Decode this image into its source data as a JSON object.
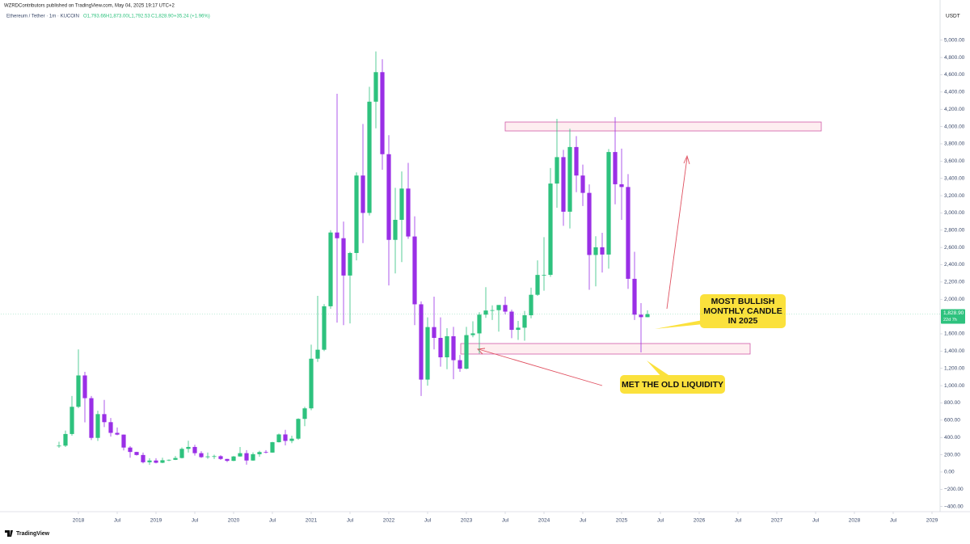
{
  "header": {
    "publisher": "WZRDContributors published on TradingView.com, May 04, 2025 19:17 UTC+2",
    "symbol": "Ethereum / Tether · 1m · KUCOIN",
    "ohlc": [
      "O1,793.66",
      "H1,873.00",
      "L1,792.53",
      "C1,828.90",
      "+35.24 (+1.96%)"
    ],
    "logo": "TradingView"
  },
  "chart_data": {
    "type": "candlestick",
    "currency": "USDT",
    "up_color": "#2ec27e",
    "down_color": "#9a2fe6",
    "x": [
      "2017-10",
      "2017-11",
      "2017-12",
      "2018-01",
      "2018-02",
      "2018-03",
      "2018-04",
      "2018-05",
      "2018-06",
      "2018-07",
      "2018-08",
      "2018-09",
      "2018-10",
      "2018-11",
      "2018-12",
      "2019-01",
      "2019-02",
      "2019-03",
      "2019-04",
      "2019-05",
      "2019-06",
      "2019-07",
      "2019-08",
      "2019-09",
      "2019-10",
      "2019-11",
      "2019-12",
      "2020-01",
      "2020-02",
      "2020-03",
      "2020-04",
      "2020-05",
      "2020-06",
      "2020-07",
      "2020-08",
      "2020-09",
      "2020-10",
      "2020-11",
      "2020-12",
      "2021-01",
      "2021-02",
      "2021-03",
      "2021-04",
      "2021-05",
      "2021-06",
      "2021-07",
      "2021-08",
      "2021-09",
      "2021-10",
      "2021-11",
      "2021-12",
      "2022-01",
      "2022-02",
      "2022-03",
      "2022-04",
      "2022-05",
      "2022-06",
      "2022-07",
      "2022-08",
      "2022-09",
      "2022-10",
      "2022-11",
      "2022-12",
      "2023-01",
      "2023-02",
      "2023-03",
      "2023-04",
      "2023-05",
      "2023-06",
      "2023-07",
      "2023-08",
      "2023-09",
      "2023-10",
      "2023-11",
      "2023-12",
      "2024-01",
      "2024-02",
      "2024-03",
      "2024-04",
      "2024-05",
      "2024-06",
      "2024-07",
      "2024-08",
      "2024-09",
      "2024-10",
      "2024-11",
      "2024-12",
      "2025-01",
      "2025-02",
      "2025-03",
      "2025-04",
      "2025-05"
    ],
    "open": [
      300,
      305,
      440,
      755,
      1118,
      855,
      395,
      670,
      577,
      453,
      433,
      283,
      232,
      197,
      113,
      133,
      107,
      136,
      141,
      162,
      268,
      290,
      218,
      172,
      180,
      183,
      151,
      129,
      180,
      218,
      133,
      206,
      231,
      225,
      345,
      435,
      360,
      386,
      615,
      737,
      1312,
      1416,
      1919,
      2773,
      2707,
      2275,
      2536,
      3433,
      3000,
      4288,
      4630,
      3680,
      2688,
      2920,
      3282,
      2727,
      1942,
      1070,
      1678,
      1553,
      1328,
      1572,
      1295,
      1196,
      1585,
      1605,
      1822,
      1870,
      1874,
      1934,
      1857,
      1646,
      1671,
      1815,
      2052,
      2282,
      2283,
      3340,
      3646,
      3014,
      3763,
      3433,
      3232,
      2513,
      2602,
      2518,
      3705,
      3332,
      3300,
      2237,
      1822,
      1793
    ],
    "high": [
      350,
      480,
      880,
      1420,
      1160,
      880,
      710,
      835,
      625,
      515,
      435,
      300,
      235,
      225,
      160,
      160,
      165,
      146,
      185,
      285,
      362,
      315,
      240,
      225,
      200,
      195,
      153,
      185,
      290,
      253,
      228,
      246,
      253,
      349,
      445,
      488,
      420,
      622,
      755,
      1475,
      2040,
      1945,
      2800,
      4380,
      2900,
      2550,
      3470,
      4030,
      4460,
      4870,
      4780,
      3900,
      3290,
      3480,
      3580,
      2960,
      1975,
      1790,
      2030,
      1790,
      1665,
      1680,
      1355,
      1680,
      1745,
      1850,
      2140,
      1930,
      1930,
      2030,
      1880,
      1750,
      1865,
      2135,
      2450,
      2720,
      3520,
      4090,
      3730,
      3975,
      3890,
      3560,
      3330,
      2730,
      2770,
      3740,
      4110,
      3745,
      3450,
      2550,
      1955,
      1873
    ],
    "low": [
      280,
      290,
      420,
      740,
      575,
      370,
      360,
      520,
      410,
      425,
      250,
      165,
      190,
      100,
      82,
      100,
      102,
      126,
      139,
      157,
      225,
      190,
      163,
      153,
      150,
      140,
      115,
      126,
      177,
      85,
      130,
      177,
      216,
      223,
      342,
      308,
      334,
      372,
      530,
      715,
      1275,
      1400,
      1890,
      1730,
      1700,
      1720,
      2450,
      2650,
      2970,
      3980,
      3500,
      2160,
      2300,
      2430,
      2700,
      1700,
      880,
      1000,
      1420,
      1220,
      1190,
      1075,
      1160,
      1190,
      1560,
      1370,
      1785,
      1760,
      1625,
      1825,
      1550,
      1530,
      1520,
      1780,
      2040,
      2100,
      2260,
      3060,
      2850,
      2820,
      3240,
      3080,
      2110,
      2150,
      2310,
      2355,
      3100,
      2920,
      2120,
      1760,
      1385,
      1792
    ],
    "close": [
      305,
      440,
      755,
      1118,
      855,
      395,
      670,
      577,
      453,
      433,
      283,
      232,
      197,
      113,
      133,
      107,
      136,
      141,
      162,
      268,
      290,
      218,
      172,
      180,
      183,
      151,
      129,
      180,
      218,
      133,
      206,
      231,
      225,
      345,
      435,
      360,
      386,
      615,
      737,
      1312,
      1416,
      1919,
      2773,
      2707,
      2275,
      2536,
      3433,
      3000,
      4288,
      4630,
      3680,
      2688,
      2920,
      3282,
      2727,
      1942,
      1070,
      1678,
      1553,
      1328,
      1572,
      1295,
      1196,
      1585,
      1605,
      1822,
      1870,
      1874,
      1934,
      1857,
      1646,
      1671,
      1815,
      2052,
      2282,
      2283,
      3340,
      3646,
      3014,
      3763,
      3433,
      3232,
      2513,
      2602,
      2518,
      3705,
      3332,
      3300,
      2237,
      1822,
      1793,
      1828
    ],
    "last_price": {
      "value": 1828.9,
      "label": "1,828.90"
    },
    "countdown": "22d 7h",
    "xlim": [
      "2017-01",
      "2029-02"
    ],
    "xticks": [
      {
        "value": "2018-01",
        "label": "2018"
      },
      {
        "value": "2018-07",
        "label": "Jul"
      },
      {
        "value": "2019-01",
        "label": "2019"
      },
      {
        "value": "2019-07",
        "label": "Jul"
      },
      {
        "value": "2020-01",
        "label": "2020"
      },
      {
        "value": "2020-07",
        "label": "Jul"
      },
      {
        "value": "2021-01",
        "label": "2021"
      },
      {
        "value": "2021-07",
        "label": "Jul"
      },
      {
        "value": "2022-01",
        "label": "2022"
      },
      {
        "value": "2022-07",
        "label": "Jul"
      },
      {
        "value": "2023-01",
        "label": "2023"
      },
      {
        "value": "2023-07",
        "label": "Jul"
      },
      {
        "value": "2024-01",
        "label": "2024"
      },
      {
        "value": "2024-07",
        "label": "Jul"
      },
      {
        "value": "2025-01",
        "label": "2025"
      },
      {
        "value": "2025-07",
        "label": "Jul"
      },
      {
        "value": "2026-01",
        "label": "2026"
      },
      {
        "value": "2026-07",
        "label": "Jul"
      },
      {
        "value": "2027-01",
        "label": "2027"
      },
      {
        "value": "2027-07",
        "label": "Jul"
      },
      {
        "value": "2028-01",
        "label": "2028"
      },
      {
        "value": "2028-07",
        "label": "Jul"
      },
      {
        "value": "2029-01",
        "label": "2029"
      }
    ],
    "ylim": [
      -450,
      5400
    ],
    "yticks": [
      {
        "value": 5000,
        "label": "5,000.00"
      },
      {
        "value": 4800,
        "label": "4,800.00"
      },
      {
        "value": 4600,
        "label": "4,600.00"
      },
      {
        "value": 4400,
        "label": "4,400.00"
      },
      {
        "value": 4200,
        "label": "4,200.00"
      },
      {
        "value": 4000,
        "label": "4,000.00"
      },
      {
        "value": 3800,
        "label": "3,800.00"
      },
      {
        "value": 3600,
        "label": "3,600.00"
      },
      {
        "value": 3400,
        "label": "3,400.00"
      },
      {
        "value": 3200,
        "label": "3,200.00"
      },
      {
        "value": 3000,
        "label": "3,000.00"
      },
      {
        "value": 2800,
        "label": "2,800.00"
      },
      {
        "value": 2600,
        "label": "2,600.00"
      },
      {
        "value": 2400,
        "label": "2,400.00"
      },
      {
        "value": 2200,
        "label": "2,200.00"
      },
      {
        "value": 2000,
        "label": "2,000.00"
      },
      {
        "value": 1600,
        "label": "1,600.00"
      },
      {
        "value": 1400,
        "label": "1,400.00"
      },
      {
        "value": 1200,
        "label": "1,200.00"
      },
      {
        "value": 1000,
        "label": "1,000.00"
      },
      {
        "value": 800,
        "label": "800.00"
      },
      {
        "value": 600,
        "label": "600.00"
      },
      {
        "value": 400,
        "label": "400.00"
      },
      {
        "value": 200,
        "label": "200.00"
      },
      {
        "value": 0,
        "label": "0.00"
      },
      {
        "value": -200,
        "label": "−200.00"
      },
      {
        "value": -400,
        "label": "−400.00"
      }
    ],
    "annotations": [
      "MOST BULLISH MONTHLY CANDLE IN 2025",
      "MET THE OLD LIQUIDITY"
    ]
  }
}
